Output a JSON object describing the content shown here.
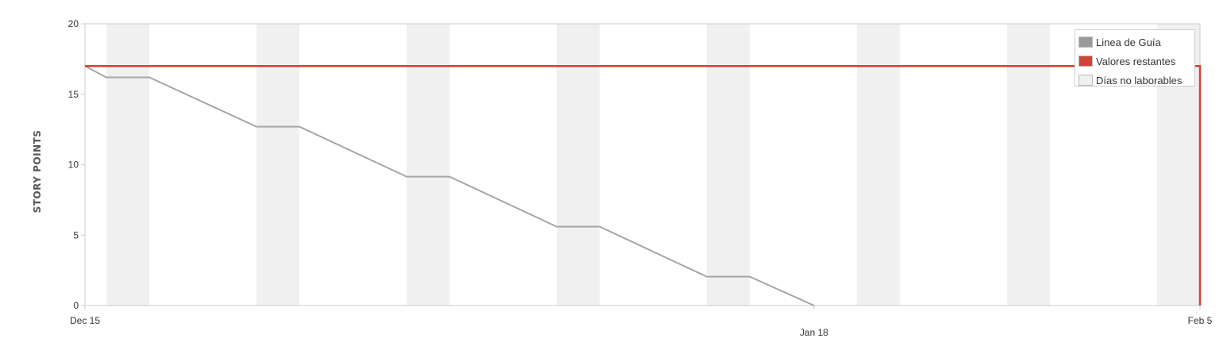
{
  "chart_data": {
    "type": "line",
    "ylabel": "STORY POINTS",
    "xlabel": "",
    "ylim": [
      0,
      20
    ],
    "y_ticks": [
      "0",
      "5",
      "10",
      "15",
      "20"
    ],
    "x_range": [
      "2017-12-15",
      "2018-02-05"
    ],
    "x_tick_labels": [
      {
        "date": "2017-12-15",
        "label": "Dec 15"
      },
      {
        "date": "2018-01-18",
        "label": "Jan 18"
      },
      {
        "date": "2018-02-05",
        "label": "Feb 5"
      }
    ],
    "non_working_days": [
      [
        "2017-12-16",
        "2017-12-18"
      ],
      [
        "2017-12-23",
        "2017-12-25"
      ],
      [
        "2017-12-30",
        "2018-01-01"
      ],
      [
        "2018-01-06",
        "2018-01-08"
      ],
      [
        "2018-01-13",
        "2018-01-15"
      ],
      [
        "2018-01-20",
        "2018-01-22"
      ],
      [
        "2018-01-27",
        "2018-01-29"
      ],
      [
        "2018-02-03",
        "2018-02-05"
      ]
    ],
    "series": [
      {
        "name": "Linea de Guía",
        "color": "#a6a6a6",
        "points": [
          {
            "x": "2017-12-15",
            "y": 17
          },
          {
            "x": "2017-12-16",
            "y": 16.2
          },
          {
            "x": "2017-12-18",
            "y": 16.2
          },
          {
            "x": "2017-12-23",
            "y": 12.7
          },
          {
            "x": "2017-12-25",
            "y": 12.7
          },
          {
            "x": "2017-12-30",
            "y": 9.15
          },
          {
            "x": "2018-01-01",
            "y": 9.15
          },
          {
            "x": "2018-01-06",
            "y": 5.6
          },
          {
            "x": "2018-01-08",
            "y": 5.6
          },
          {
            "x": "2018-01-13",
            "y": 2.05
          },
          {
            "x": "2018-01-15",
            "y": 2.05
          },
          {
            "x": "2018-01-18",
            "y": 0
          }
        ]
      },
      {
        "name": "Valores restantes",
        "color": "#d04437",
        "points": [
          {
            "x": "2017-12-15",
            "y": 17
          },
          {
            "x": "2018-02-05",
            "y": 17
          },
          {
            "x": "2018-02-05",
            "y": 0
          }
        ]
      }
    ],
    "legend": {
      "position": "top-right",
      "items": [
        {
          "label": "Linea de Guía",
          "color": "#999999"
        },
        {
          "label": "Valores restantes",
          "color": "#d04437"
        },
        {
          "label": "Días no laborables",
          "color": "#f0f0f0"
        }
      ]
    },
    "colors": {
      "axis": "#cccccc",
      "non_working": "#f0f0f0"
    },
    "grid": false
  }
}
